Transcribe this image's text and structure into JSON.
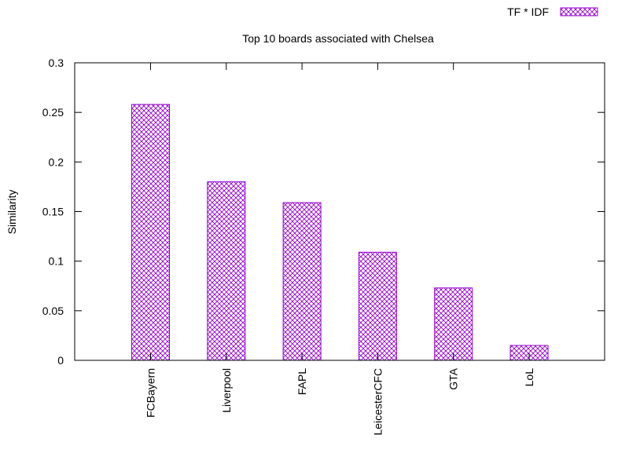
{
  "chart_data": {
    "type": "bar",
    "title": "Top 10 boards associated with Chelsea",
    "xlabel": "",
    "ylabel": "Similarity",
    "categories": [
      "FCBayern",
      "Liverpool",
      "FAPL",
      "LeicesterCFC",
      "GTA",
      "LoL"
    ],
    "series": [
      {
        "name": "TF * IDF",
        "values": [
          0.258,
          0.18,
          0.159,
          0.109,
          0.073,
          0.015
        ]
      }
    ],
    "ylim": [
      0,
      0.3
    ],
    "yticks": [
      "0",
      "0.05",
      "0.1",
      "0.15",
      "0.2",
      "0.25",
      "0.3"
    ],
    "legend_position": "top-right",
    "grid": false,
    "bar_color": "#9400d3",
    "bar_pattern": "crosshatch"
  }
}
